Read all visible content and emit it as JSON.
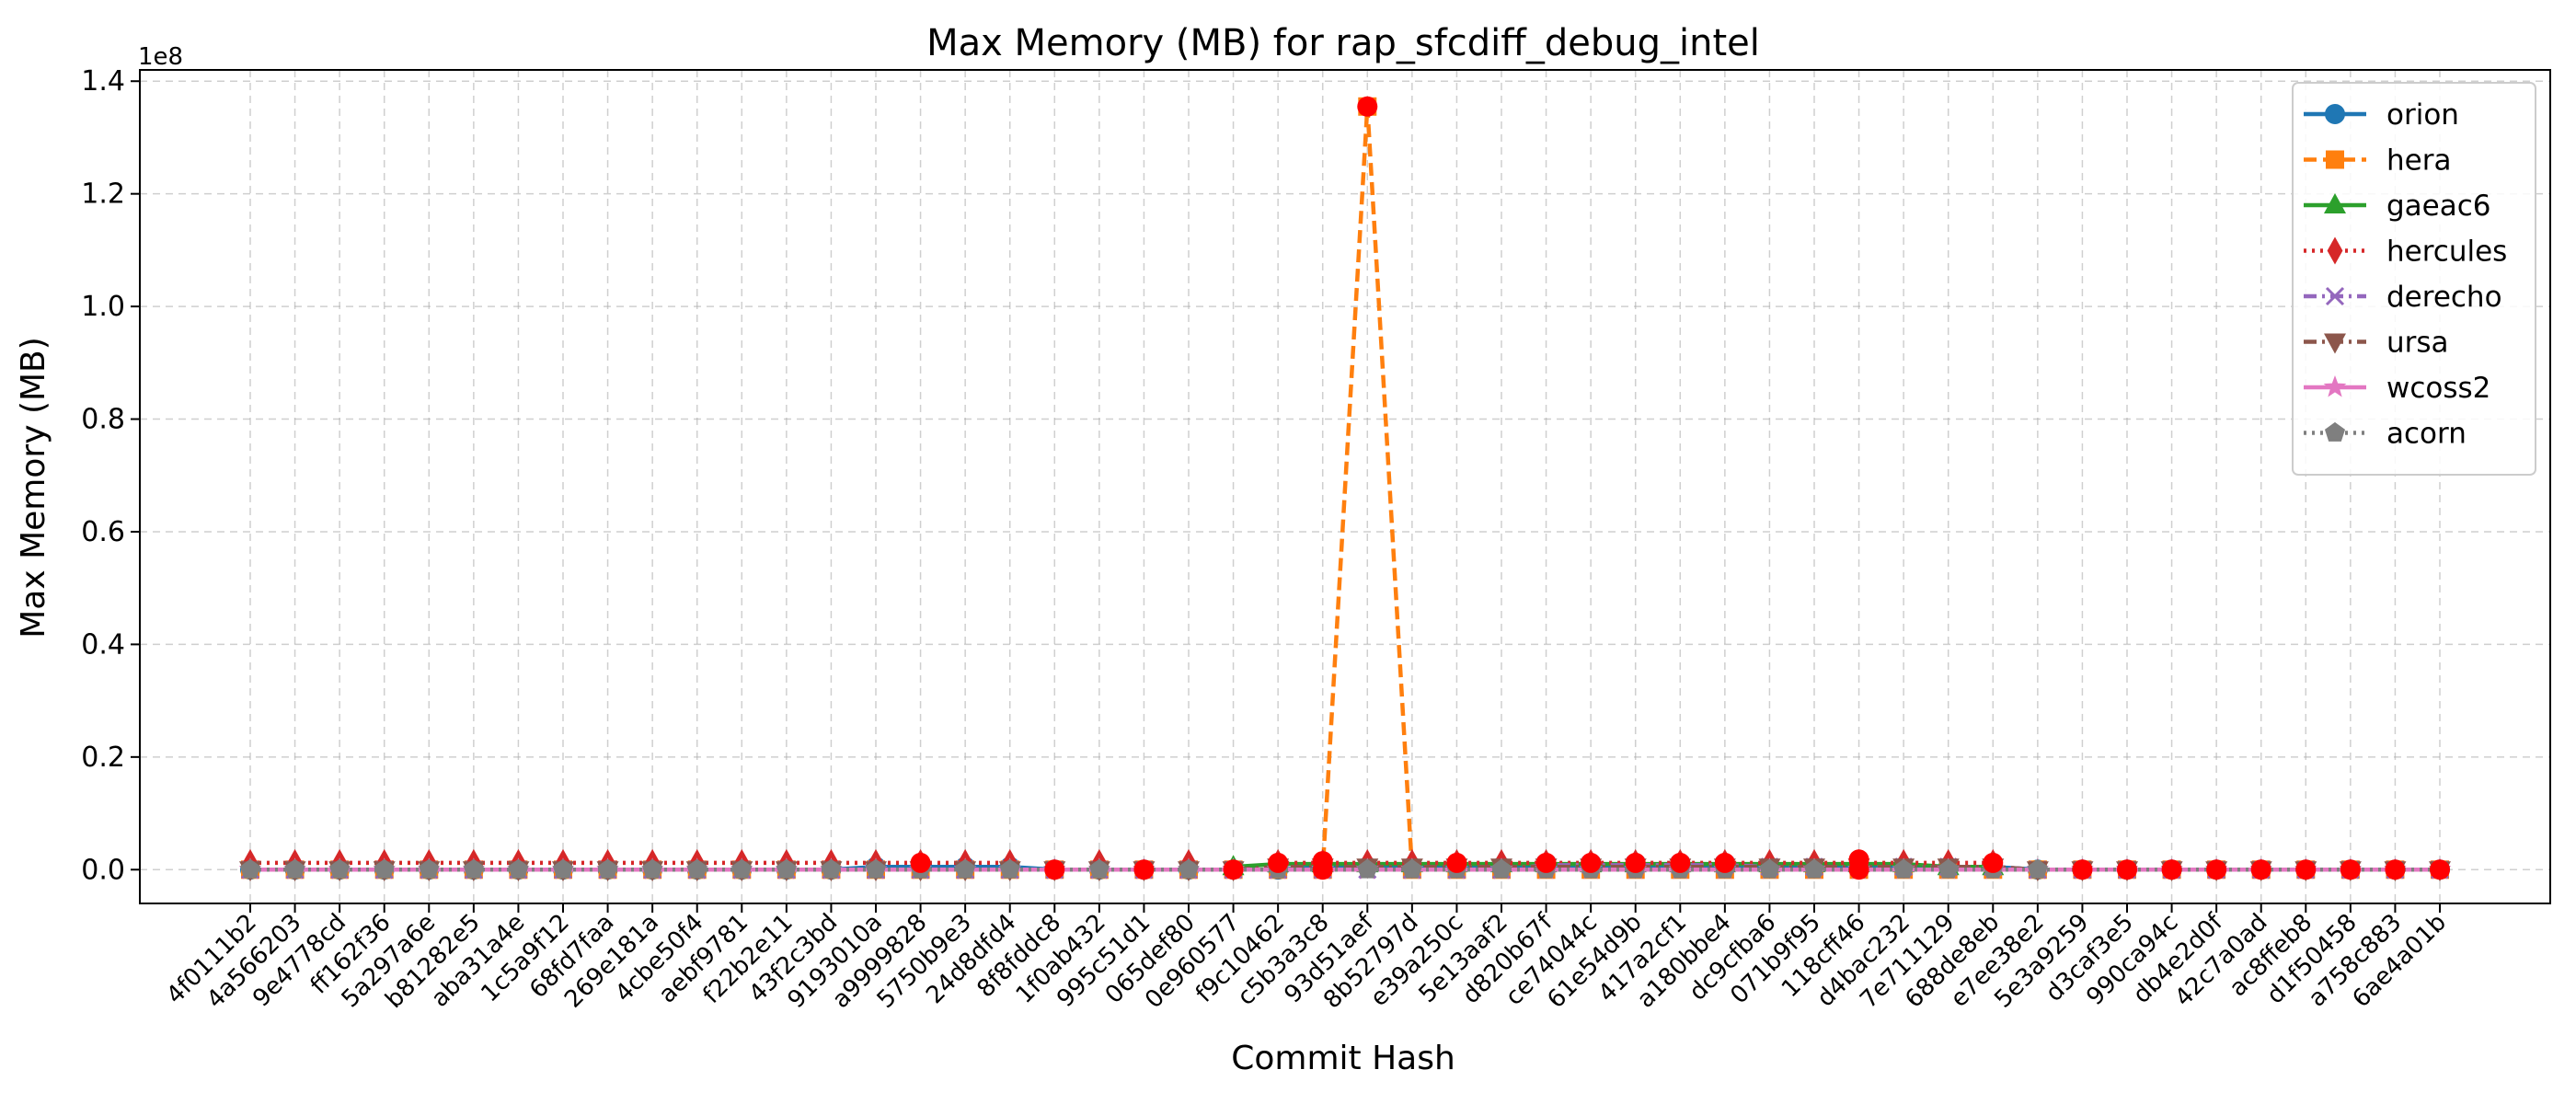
{
  "chart_data": {
    "type": "line",
    "title": "Max Memory (MB) for rap_sfcdiff_debug_intel",
    "xlabel": "Commit Hash",
    "ylabel": "Max Memory (MB)",
    "y_scale_label": "1e8",
    "ylim": [
      -0.06,
      1.42
    ],
    "y_ticks": [
      0.0,
      0.2,
      0.4,
      0.6,
      0.8,
      1.0,
      1.2,
      1.4
    ],
    "y_tick_labels": [
      "0.0",
      "0.2",
      "0.4",
      "0.6",
      "0.8",
      "1.0",
      "1.2",
      "1.4"
    ],
    "grid": true,
    "legend_position": "top-right",
    "categories": [
      "4f0111b2",
      "4a566203",
      "9e4778cd",
      "ff162f36",
      "5a297a6e",
      "b81282e5",
      "aba31a4e",
      "1c5a9f12",
      "68fd7faa",
      "269e181a",
      "4cbe50f4",
      "aebf9781",
      "f22b2e11",
      "43f2c3bd",
      "9193010a",
      "a9999828",
      "5750b9e3",
      "24d8dfd4",
      "8f8fddc8",
      "1f0ab432",
      "995c51d1",
      "065def80",
      "0e960577",
      "f9c10462",
      "c5b3a3c8",
      "93d51aef",
      "8b52797d",
      "e39a250c",
      "5e13aaf2",
      "d820b67f",
      "ce74044c",
      "61e54d9b",
      "417a2cf1",
      "a180bbe4",
      "dc9cfba6",
      "071b9f95",
      "118cff46",
      "d4bac232",
      "7e711129",
      "688de8eb",
      "e7ee38e2",
      "5e3a9259",
      "d3caf3e5",
      "990ca94c",
      "db4e2d0f",
      "42c7a0ad",
      "ac8ffeb8",
      "d1f50458",
      "a758c883",
      "6ae4a01b"
    ],
    "series": [
      {
        "name": "orion",
        "color": "#1f77b4",
        "dash": "solid",
        "marker": "circle",
        "values": [
          0.0,
          0.0,
          0.0,
          0.0,
          0.0,
          0.0,
          0.0,
          0.0,
          0.0,
          0.0,
          0.0,
          0.0,
          0.0,
          0.0,
          0.005,
          0.005,
          0.005,
          0.005,
          0.0,
          0.0,
          0.0,
          0.0,
          0.0,
          0.0,
          0.005,
          0.005,
          0.005,
          0.005,
          0.005,
          0.005,
          0.005,
          0.005,
          0.005,
          0.005,
          0.005,
          0.005,
          0.005,
          0.005,
          0.005,
          0.005,
          0.0,
          0.0,
          0.0,
          0.0,
          0.0,
          0.0,
          0.0,
          0.0,
          0.0,
          0.0
        ]
      },
      {
        "name": "hera",
        "color": "#ff7f0e",
        "dash": "dashed",
        "marker": "square",
        "values": [
          0.0,
          0.0,
          0.0,
          0.0,
          0.0,
          0.0,
          0.0,
          0.0,
          0.0,
          0.0,
          0.0,
          0.0,
          0.0,
          0.0,
          0.0,
          0.0,
          0.0,
          0.0,
          0.0,
          0.0,
          0.0,
          0.0,
          0.0,
          0.0,
          0.0,
          1.355,
          0.0,
          0.0,
          0.0,
          0.0,
          0.0,
          0.0,
          0.0,
          0.0,
          0.0,
          0.0,
          0.0,
          0.0,
          0.0,
          0.0,
          0.0,
          0.0,
          0.0,
          0.0,
          0.0,
          0.0,
          0.0,
          0.0,
          0.0,
          0.0
        ]
      },
      {
        "name": "gaeac6",
        "color": "#2ca02c",
        "dash": "solid",
        "marker": "triangle",
        "values": [
          null,
          null,
          null,
          null,
          null,
          null,
          null,
          null,
          null,
          null,
          null,
          null,
          null,
          null,
          null,
          null,
          null,
          null,
          null,
          null,
          null,
          null,
          0.005,
          0.01,
          0.01,
          0.01,
          0.01,
          0.01,
          0.01,
          0.01,
          0.01,
          0.01,
          0.01,
          0.01,
          0.01,
          0.01,
          0.01,
          0.01,
          0.005,
          0.005,
          null,
          null,
          null,
          null,
          null,
          null,
          null,
          null,
          null,
          null
        ]
      },
      {
        "name": "hercules",
        "color": "#d62728",
        "dash": "dotted",
        "marker": "diamond",
        "values": [
          0.012,
          0.012,
          0.012,
          0.012,
          0.012,
          0.012,
          0.012,
          0.012,
          0.012,
          0.012,
          0.012,
          0.012,
          0.012,
          0.012,
          0.012,
          0.012,
          0.012,
          0.012,
          null,
          0.012,
          null,
          0.012,
          null,
          0.012,
          0.012,
          0.012,
          0.012,
          0.012,
          0.012,
          0.012,
          0.012,
          0.012,
          0.012,
          0.012,
          0.012,
          0.012,
          0.012,
          0.012,
          0.012,
          0.012,
          null,
          null,
          null,
          null,
          null,
          null,
          null,
          null,
          null,
          null
        ]
      },
      {
        "name": "derecho",
        "color": "#9467bd",
        "dash": "dashdot",
        "marker": "x",
        "values": [
          0.0,
          0.0,
          0.0,
          0.0,
          0.0,
          0.0,
          0.0,
          0.0,
          0.0,
          0.0,
          0.0,
          0.0,
          0.0,
          0.0,
          0.0,
          0.0,
          0.0,
          0.0,
          0.0,
          0.0,
          0.0,
          0.0,
          0.0,
          0.0,
          0.0,
          0.0,
          0.0,
          0.0,
          0.0,
          0.008,
          0.008,
          0.008,
          0.008,
          0.008,
          0.005,
          0.005,
          0.005,
          0.005,
          0.005,
          0.005,
          0.0,
          0.0,
          0.0,
          0.0,
          0.0,
          0.0,
          0.0,
          0.0,
          0.0,
          0.0
        ]
      },
      {
        "name": "ursa",
        "color": "#8c564b",
        "dash": "dashdot",
        "marker": "triangle-down",
        "values": [
          0.0,
          0.0,
          0.0,
          0.0,
          0.0,
          0.0,
          0.0,
          0.0,
          0.0,
          0.0,
          0.0,
          0.0,
          0.0,
          0.0,
          0.0,
          0.0,
          0.0,
          0.0,
          0.0,
          0.0,
          0.0,
          0.0,
          0.0,
          0.005,
          0.005,
          0.005,
          0.005,
          0.005,
          0.005,
          0.005,
          0.005,
          0.005,
          0.005,
          0.005,
          0.005,
          0.005,
          0.005,
          0.005,
          0.005,
          0.005,
          0.0,
          0.0,
          0.0,
          0.0,
          0.0,
          0.0,
          0.0,
          0.0,
          0.0,
          0.0
        ]
      },
      {
        "name": "wcoss2",
        "color": "#e377c2",
        "dash": "solid",
        "marker": "star",
        "values": [
          0.0,
          0.0,
          0.0,
          0.0,
          0.0,
          0.0,
          0.0,
          0.0,
          0.0,
          0.0,
          0.0,
          0.0,
          0.0,
          0.0,
          0.0,
          0.0,
          0.0,
          0.0,
          0.0,
          0.0,
          0.0,
          0.0,
          0.0,
          0.0,
          0.0,
          0.0,
          0.0,
          0.0,
          0.0,
          0.0,
          0.0,
          0.0,
          0.0,
          0.0,
          0.0,
          0.0,
          0.0,
          0.0,
          0.0,
          0.0,
          0.0,
          0.0,
          0.0,
          0.0,
          0.0,
          0.0,
          0.0,
          0.0,
          0.0,
          0.0
        ]
      },
      {
        "name": "acorn",
        "color": "#7f7f7f",
        "dash": "dotted",
        "marker": "pentagon",
        "values": [
          0.0,
          0.0,
          0.0,
          0.0,
          0.0,
          0.0,
          0.0,
          0.0,
          0.0,
          0.0,
          0.0,
          0.0,
          0.0,
          0.0,
          0.0,
          0.0,
          0.0,
          0.0,
          0.0,
          0.0,
          0.0,
          0.0,
          0.0,
          0.0,
          0.0,
          0.0,
          0.0,
          0.0,
          0.0,
          0.0,
          0.0,
          0.0,
          0.0,
          0.0,
          0.0,
          0.0,
          0.0,
          0.0,
          0.0,
          0.0,
          0.0,
          0.0,
          0.0,
          0.0,
          0.0,
          0.0,
          0.0,
          0.0,
          0.0,
          0.0
        ]
      }
    ],
    "highlights": {
      "color": "#ff0000",
      "points": [
        {
          "category": "a9999828",
          "value": 0.012
        },
        {
          "category": "8f8fddc8",
          "value": 0.0
        },
        {
          "category": "995c51d1",
          "value": 0.0
        },
        {
          "category": "0e960577",
          "value": 0.0
        },
        {
          "category": "f9c10462",
          "value": 0.012
        },
        {
          "category": "c5b3a3c8",
          "value": 0.0
        },
        {
          "category": "c5b3a3c8",
          "value": 0.015
        },
        {
          "category": "93d51aef",
          "value": 1.355
        },
        {
          "category": "e39a250c",
          "value": 0.012
        },
        {
          "category": "d820b67f",
          "value": 0.012
        },
        {
          "category": "ce74044c",
          "value": 0.012
        },
        {
          "category": "61e54d9b",
          "value": 0.012
        },
        {
          "category": "417a2cf1",
          "value": 0.012
        },
        {
          "category": "a180bbe4",
          "value": 0.012
        },
        {
          "category": "118cff46",
          "value": 0.018
        },
        {
          "category": "118cff46",
          "value": 0.0
        },
        {
          "category": "688de8eb",
          "value": 0.012
        },
        {
          "category": "5e3a9259",
          "value": 0.0
        },
        {
          "category": "d3caf3e5",
          "value": 0.0
        },
        {
          "category": "990ca94c",
          "value": 0.0
        },
        {
          "category": "db4e2d0f",
          "value": 0.0
        },
        {
          "category": "42c7a0ad",
          "value": 0.0
        },
        {
          "category": "ac8ffeb8",
          "value": 0.0
        },
        {
          "category": "d1f50458",
          "value": 0.0
        },
        {
          "category": "a758c883",
          "value": 0.0
        },
        {
          "category": "6ae4a01b",
          "value": 0.0
        }
      ]
    }
  }
}
